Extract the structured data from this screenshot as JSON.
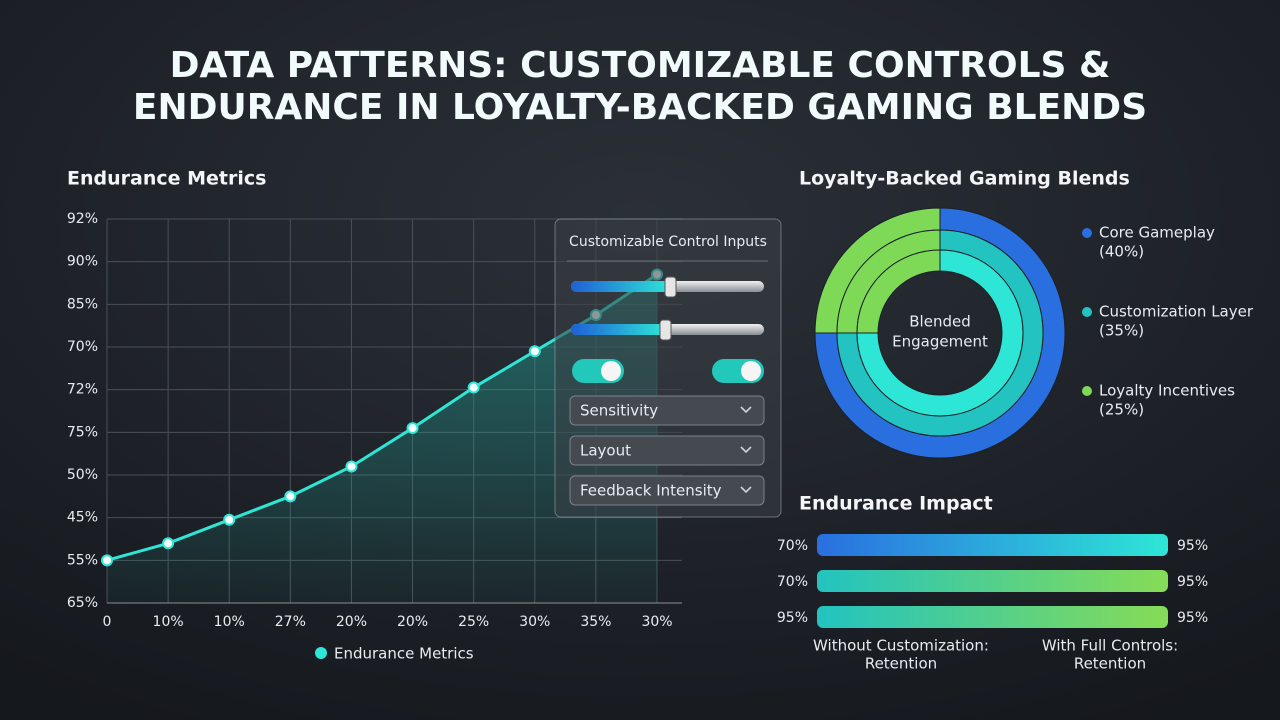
{
  "header": {
    "title": [
      "DATA PATTERNS: CUSTOMIZABLE CONTROLS &",
      "ENDURANCE IN LOYALTY-BACKED GAMING BLENDS"
    ]
  },
  "chart_data": [
    {
      "type": "line",
      "title": "Endurance Metrics",
      "categories": [
        "0",
        "10%",
        "10%",
        "27%",
        "20%",
        "20%",
        "25%",
        "30%",
        "35%",
        "30%"
      ],
      "series": [
        {
          "name": "Endurance Metrics",
          "color": "#2ee6d6",
          "values": [
            1.0,
            1.4,
            1.95,
            2.5,
            3.2,
            4.1,
            5.05,
            5.9,
            6.75,
            7.7
          ]
        }
      ],
      "ylim": [
        0,
        9
      ],
      "yticks": [
        {
          "value": 0,
          "label": "65%"
        },
        {
          "value": 1,
          "label": "55%"
        },
        {
          "value": 2,
          "label": "45%"
        },
        {
          "value": 3,
          "label": "50%"
        },
        {
          "value": 4,
          "label": "75%"
        },
        {
          "value": 5,
          "label": "72%"
        },
        {
          "value": 6,
          "label": "70%"
        },
        {
          "value": 7,
          "label": "85%"
        },
        {
          "value": 8,
          "label": "90%"
        },
        {
          "value": 9,
          "label": "92%"
        }
      ],
      "grid": true
    },
    {
      "type": "donut",
      "title": "Loyalty-Backed Gaming Blends",
      "center_label": [
        "Blended",
        "Engagement"
      ],
      "categories": [
        "Core Gameplay",
        "Customization Layer",
        "Loyalty Incentives"
      ],
      "values": [
        40,
        35,
        25
      ],
      "value_labels": [
        "(40%)",
        "(35%)",
        "(25%)"
      ],
      "colors": [
        "#2a6fe0",
        "#22c3c0",
        "#7ed957"
      ]
    },
    {
      "type": "range-bars",
      "title": "Endurance Impact",
      "left_values": [
        70,
        70,
        95
      ],
      "right_values": [
        95,
        95,
        95
      ],
      "left_value_labels": [
        "70%",
        "70%",
        "95%"
      ],
      "right_value_labels": [
        "95%",
        "95%",
        "95%"
      ],
      "captions": [
        [
          "Without Customization:",
          "Retention"
        ],
        [
          "With Full Controls:",
          "Retention"
        ]
      ]
    }
  ],
  "control_panel": {
    "title": "Customizable Control Inputs",
    "dropdowns": [
      "Sensitivity",
      "Layout",
      "Feedback Intensity"
    ]
  }
}
